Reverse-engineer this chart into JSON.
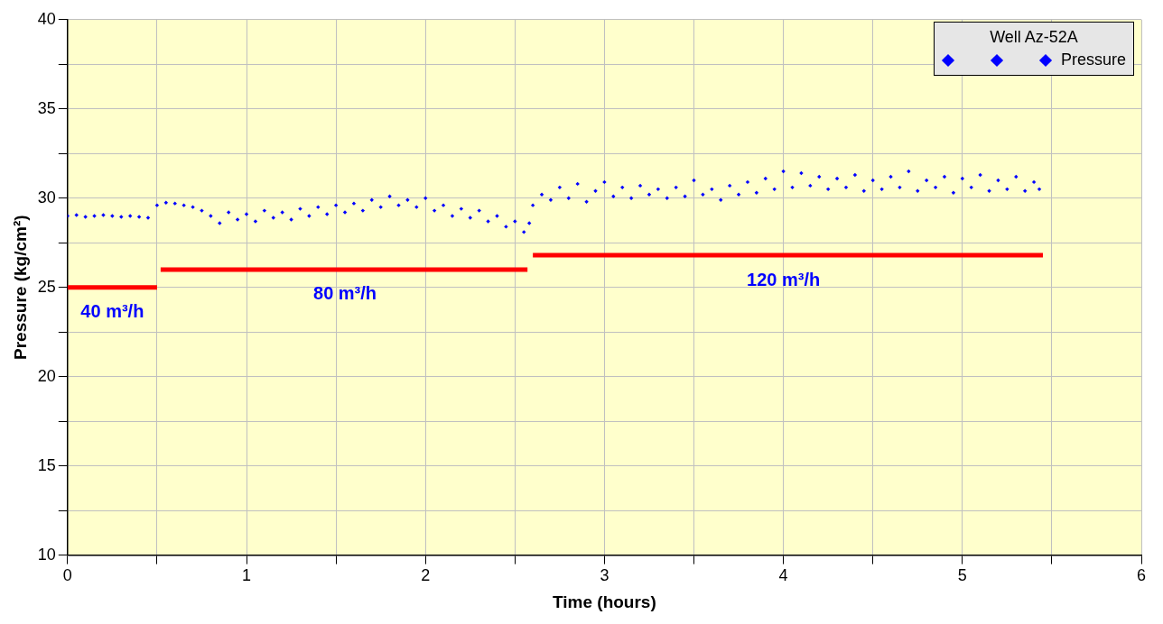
{
  "chart_data": {
    "type": "scatter",
    "xlabel": "Time (hours)",
    "ylabel": "Pressure (kg/cm²)",
    "legend_title": "Well Az-52A",
    "legend": "top right",
    "grid": true,
    "xlim": [
      0,
      6
    ],
    "xticks": [
      0,
      {
        "value": 0.5,
        "label": null
      },
      1,
      {
        "value": 1.5,
        "label": null
      },
      2,
      {
        "value": 2.5,
        "label": null
      },
      3,
      {
        "value": 3.5,
        "label": null
      },
      4,
      {
        "value": 4.5,
        "label": null
      },
      5,
      {
        "value": 5.5,
        "label": null
      },
      6
    ],
    "ylim": [
      10,
      40
    ],
    "yticks": [
      10,
      {
        "value": 12.5,
        "label": null
      },
      15,
      {
        "value": 17.5,
        "label": null
      },
      20,
      {
        "value": 22.5,
        "label": null
      },
      25,
      {
        "value": 27.5,
        "label": null
      },
      30,
      {
        "value": 32.5,
        "label": null
      },
      35,
      {
        "value": 37.5,
        "label": null
      },
      40
    ],
    "series": [
      {
        "name": "Pressure",
        "type": "scatter",
        "marker": "diamond",
        "color": "#0000ff",
        "x": [
          0,
          0.05,
          0.1,
          0.15,
          0.2,
          0.25,
          0.3,
          0.35,
          0.4,
          0.45,
          0.5,
          0.55,
          0.6,
          0.65,
          0.7,
          0.75,
          0.8,
          0.85,
          0.9,
          0.95,
          1.0,
          1.05,
          1.1,
          1.15,
          1.2,
          1.25,
          1.3,
          1.35,
          1.4,
          1.45,
          1.5,
          1.55,
          1.6,
          1.65,
          1.7,
          1.75,
          1.8,
          1.85,
          1.9,
          1.95,
          2.0,
          2.05,
          2.1,
          2.15,
          2.2,
          2.25,
          2.3,
          2.35,
          2.4,
          2.45,
          2.5,
          2.55,
          2.58,
          2.6,
          2.65,
          2.7,
          2.75,
          2.8,
          2.85,
          2.9,
          2.95,
          3.0,
          3.05,
          3.1,
          3.15,
          3.2,
          3.25,
          3.3,
          3.35,
          3.4,
          3.45,
          3.5,
          3.55,
          3.6,
          3.65,
          3.7,
          3.75,
          3.8,
          3.85,
          3.9,
          3.95,
          4.0,
          4.05,
          4.1,
          4.15,
          4.2,
          4.25,
          4.3,
          4.35,
          4.4,
          4.45,
          4.5,
          4.55,
          4.6,
          4.65,
          4.7,
          4.75,
          4.8,
          4.85,
          4.9,
          4.95,
          5.0,
          5.05,
          5.1,
          5.15,
          5.2,
          5.25,
          5.3,
          5.35,
          5.4,
          5.43
        ],
        "values": [
          29.0,
          29.05,
          28.95,
          29.0,
          29.05,
          29.0,
          28.95,
          29.0,
          28.95,
          28.9,
          29.6,
          29.75,
          29.7,
          29.6,
          29.5,
          29.3,
          29.0,
          28.6,
          29.2,
          28.8,
          29.1,
          28.7,
          29.3,
          28.9,
          29.2,
          28.8,
          29.4,
          29.0,
          29.5,
          29.1,
          29.6,
          29.2,
          29.7,
          29.3,
          29.9,
          29.5,
          30.1,
          29.6,
          29.9,
          29.5,
          30.0,
          29.3,
          29.6,
          29.0,
          29.4,
          28.9,
          29.3,
          28.7,
          29.0,
          28.4,
          28.7,
          28.1,
          28.6,
          29.6,
          30.2,
          29.9,
          30.6,
          30.0,
          30.8,
          29.8,
          30.4,
          30.9,
          30.1,
          30.6,
          30.0,
          30.7,
          30.2,
          30.5,
          30.0,
          30.6,
          30.1,
          31.0,
          30.2,
          30.5,
          29.9,
          30.7,
          30.2,
          30.9,
          30.3,
          31.1,
          30.5,
          31.5,
          30.6,
          31.4,
          30.7,
          31.2,
          30.5,
          31.1,
          30.6,
          31.3,
          30.4,
          31.0,
          30.5,
          31.2,
          30.6,
          31.5,
          30.4,
          31.0,
          30.6,
          31.2,
          30.3,
          31.1,
          30.6,
          31.3,
          30.4,
          31.0,
          30.5,
          31.2,
          30.4,
          30.9,
          30.5
        ]
      },
      {
        "type": "line",
        "marker": "none",
        "color": "#ff0000",
        "x": [
          0,
          0.5
        ],
        "values": [
          25.0,
          25.0
        ]
      },
      {
        "type": "line",
        "marker": "none",
        "color": "#ff0000",
        "x": [
          0.52,
          2.57
        ],
        "values": [
          26.0,
          26.0
        ]
      },
      {
        "type": "line",
        "marker": "none",
        "color": "#ff0000",
        "x": [
          2.6,
          5.45
        ],
        "values": [
          26.8,
          26.8
        ]
      }
    ],
    "annotations": [
      {
        "text": "40 m³/h",
        "x": 0.25,
        "y": 25.0
      },
      {
        "text": "80 m³/h",
        "x": 1.55,
        "y": 26.0
      },
      {
        "text": "120 m³/h",
        "x": 4.0,
        "y": 26.8
      }
    ]
  }
}
